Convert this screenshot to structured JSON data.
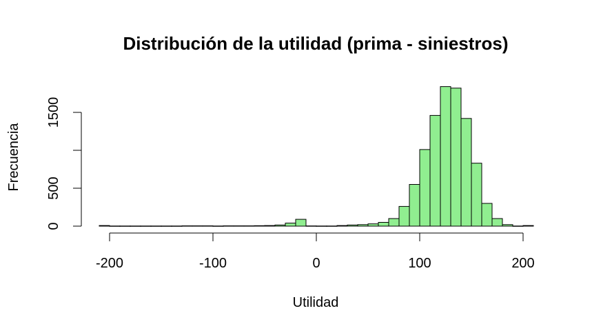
{
  "chart_data": {
    "type": "bar",
    "title": "Distribución de la utilidad (prima - siniestros)",
    "xlabel": "Utilidad",
    "ylabel": "Frecuencia",
    "xlim": [
      -210,
      210
    ],
    "ylim": [
      0,
      1850
    ],
    "x_ticks": [
      -200,
      -100,
      0,
      100,
      200
    ],
    "x_tick_labels": [
      "-200",
      "-100",
      "0",
      "100",
      "200"
    ],
    "y_ticks": [
      0,
      500,
      1000,
      1500
    ],
    "y_tick_labels": [
      "0",
      "500",
      "",
      "1500"
    ],
    "bar_color": "#90ee90",
    "bin_width": 10,
    "bins": [
      {
        "x0": -210,
        "x1": -200,
        "count": 8
      },
      {
        "x0": -200,
        "x1": -190,
        "count": 2
      },
      {
        "x0": -190,
        "x1": -180,
        "count": 2
      },
      {
        "x0": -180,
        "x1": -170,
        "count": 2
      },
      {
        "x0": -170,
        "x1": -160,
        "count": 2
      },
      {
        "x0": -160,
        "x1": -150,
        "count": 2
      },
      {
        "x0": -150,
        "x1": -140,
        "count": 2
      },
      {
        "x0": -140,
        "x1": -130,
        "count": 2
      },
      {
        "x0": -130,
        "x1": -120,
        "count": 4
      },
      {
        "x0": -120,
        "x1": -110,
        "count": 4
      },
      {
        "x0": -110,
        "x1": -100,
        "count": 4
      },
      {
        "x0": -100,
        "x1": -90,
        "count": 2
      },
      {
        "x0": -90,
        "x1": -80,
        "count": 4
      },
      {
        "x0": -80,
        "x1": -70,
        "count": 4
      },
      {
        "x0": -70,
        "x1": -60,
        "count": 4
      },
      {
        "x0": -60,
        "x1": -50,
        "count": 6
      },
      {
        "x0": -50,
        "x1": -40,
        "count": 8
      },
      {
        "x0": -40,
        "x1": -30,
        "count": 15
      },
      {
        "x0": -30,
        "x1": -20,
        "count": 40
      },
      {
        "x0": -20,
        "x1": -10,
        "count": 90
      },
      {
        "x0": -10,
        "x1": 0,
        "count": 3
      },
      {
        "x0": 0,
        "x1": 10,
        "count": 2
      },
      {
        "x0": 10,
        "x1": 20,
        "count": 2
      },
      {
        "x0": 20,
        "x1": 30,
        "count": 8
      },
      {
        "x0": 30,
        "x1": 40,
        "count": 15
      },
      {
        "x0": 40,
        "x1": 50,
        "count": 20
      },
      {
        "x0": 50,
        "x1": 60,
        "count": 30
      },
      {
        "x0": 60,
        "x1": 70,
        "count": 50
      },
      {
        "x0": 70,
        "x1": 80,
        "count": 100
      },
      {
        "x0": 80,
        "x1": 90,
        "count": 260
      },
      {
        "x0": 90,
        "x1": 100,
        "count": 550
      },
      {
        "x0": 100,
        "x1": 110,
        "count": 1010
      },
      {
        "x0": 110,
        "x1": 120,
        "count": 1460
      },
      {
        "x0": 120,
        "x1": 130,
        "count": 1840
      },
      {
        "x0": 130,
        "x1": 140,
        "count": 1820
      },
      {
        "x0": 140,
        "x1": 150,
        "count": 1420
      },
      {
        "x0": 150,
        "x1": 160,
        "count": 830
      },
      {
        "x0": 160,
        "x1": 170,
        "count": 300
      },
      {
        "x0": 170,
        "x1": 180,
        "count": 100
      },
      {
        "x0": 180,
        "x1": 190,
        "count": 20
      },
      {
        "x0": 190,
        "x1": 200,
        "count": 2
      },
      {
        "x0": 200,
        "x1": 210,
        "count": 8
      }
    ]
  }
}
